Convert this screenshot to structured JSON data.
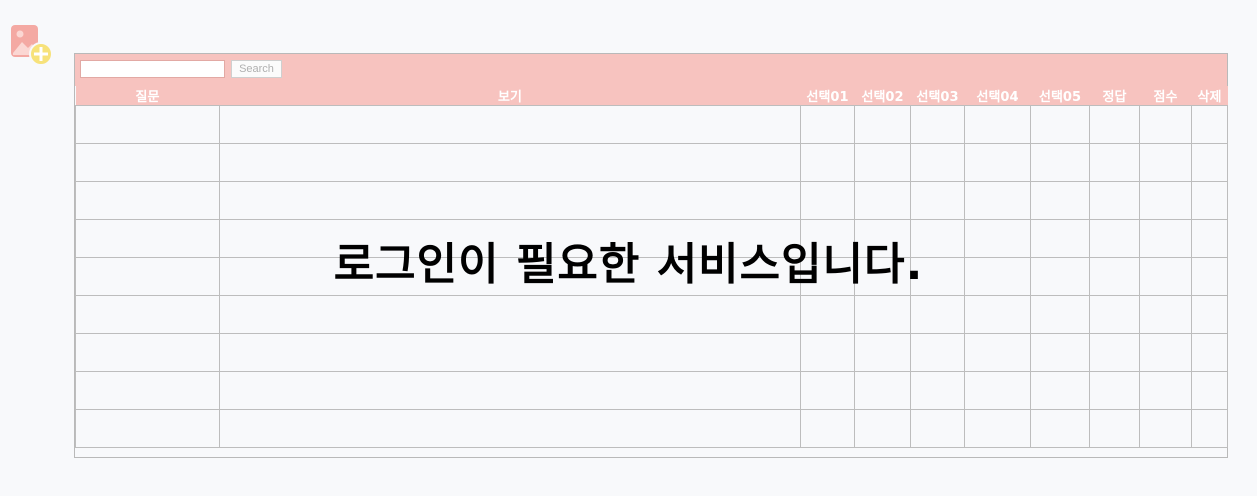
{
  "app": {
    "icon": "add-image-icon",
    "icon_colors": {
      "frame": "#f4a9a3",
      "plus_badge": "#f7e27a"
    }
  },
  "toolbar": {
    "search_placeholder": "",
    "search_value": "",
    "search_label": "Search"
  },
  "table": {
    "columns": [
      "질문",
      "보기",
      "선택01",
      "선택02",
      "선택03",
      "선택04",
      "선택05",
      "정답",
      "점수",
      "삭제"
    ],
    "row_count": 9
  },
  "overlay": {
    "message": "로그인이 필요한 서비스입니다."
  },
  "colors": {
    "header_bg": "#f7c3bf",
    "header_text": "#ffffff",
    "grid_line": "#bdbdbd",
    "page_bg": "#f8f9fb"
  }
}
